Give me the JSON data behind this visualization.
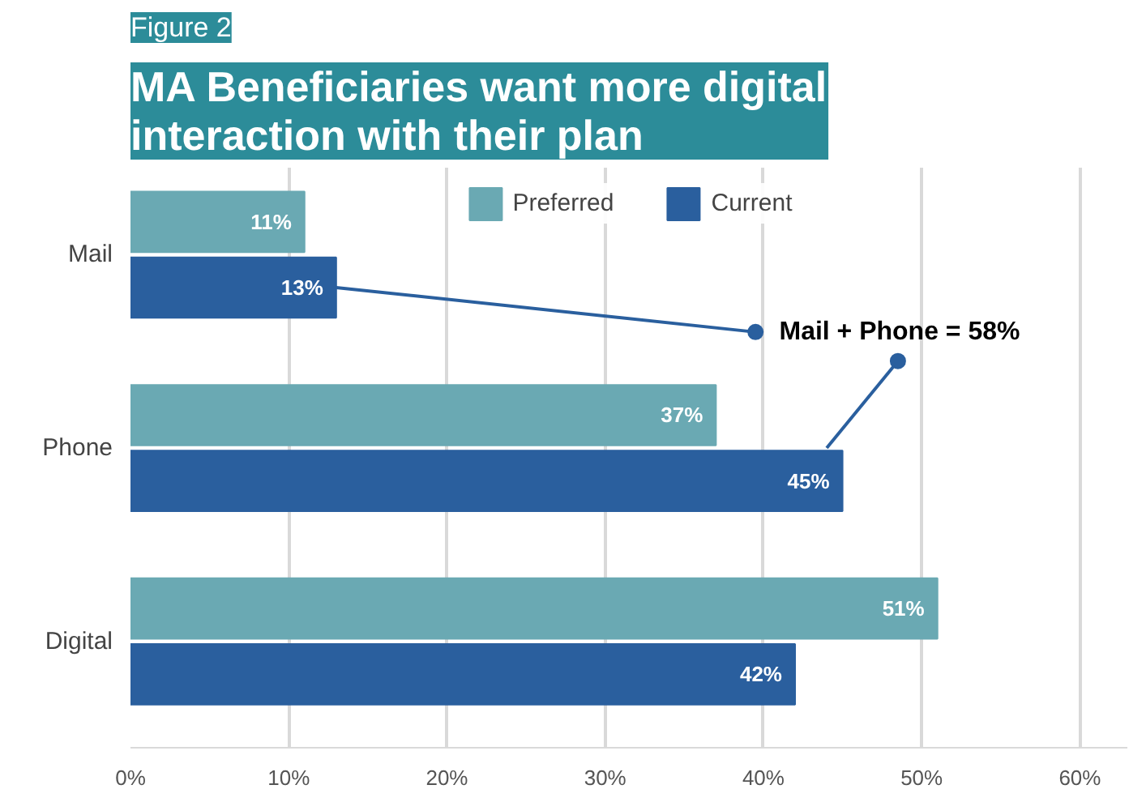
{
  "chart_data": {
    "type": "bar",
    "orientation": "horizontal",
    "subtitle": "Figure 2",
    "title": "MA Beneficiaries want more digital interaction with their plan",
    "categories": [
      "Mail",
      "Phone",
      "Digital"
    ],
    "series": [
      {
        "name": "Preferred",
        "color": "#6aa9b3",
        "values": [
          11,
          37,
          51
        ]
      },
      {
        "name": "Current",
        "color": "#2a5f9e",
        "values": [
          13,
          45,
          42
        ]
      }
    ],
    "xlim": [
      0,
      63
    ],
    "xticks": [
      {
        "value": 0,
        "label": "0%"
      },
      {
        "value": 10,
        "label": "10%"
      },
      {
        "value": 20,
        "label": "20%"
      },
      {
        "value": 30,
        "label": "30%"
      },
      {
        "value": 40,
        "label": "40%"
      },
      {
        "value": 50,
        "label": "50%"
      },
      {
        "value": 60,
        "label": "60%"
      }
    ],
    "value_labels": [
      [
        "11%",
        "37%",
        "51%"
      ],
      [
        "13%",
        "45%",
        "42%"
      ]
    ],
    "annotations": [
      "Mail + Phone = 58%"
    ],
    "grid": "x",
    "legend": "top"
  }
}
